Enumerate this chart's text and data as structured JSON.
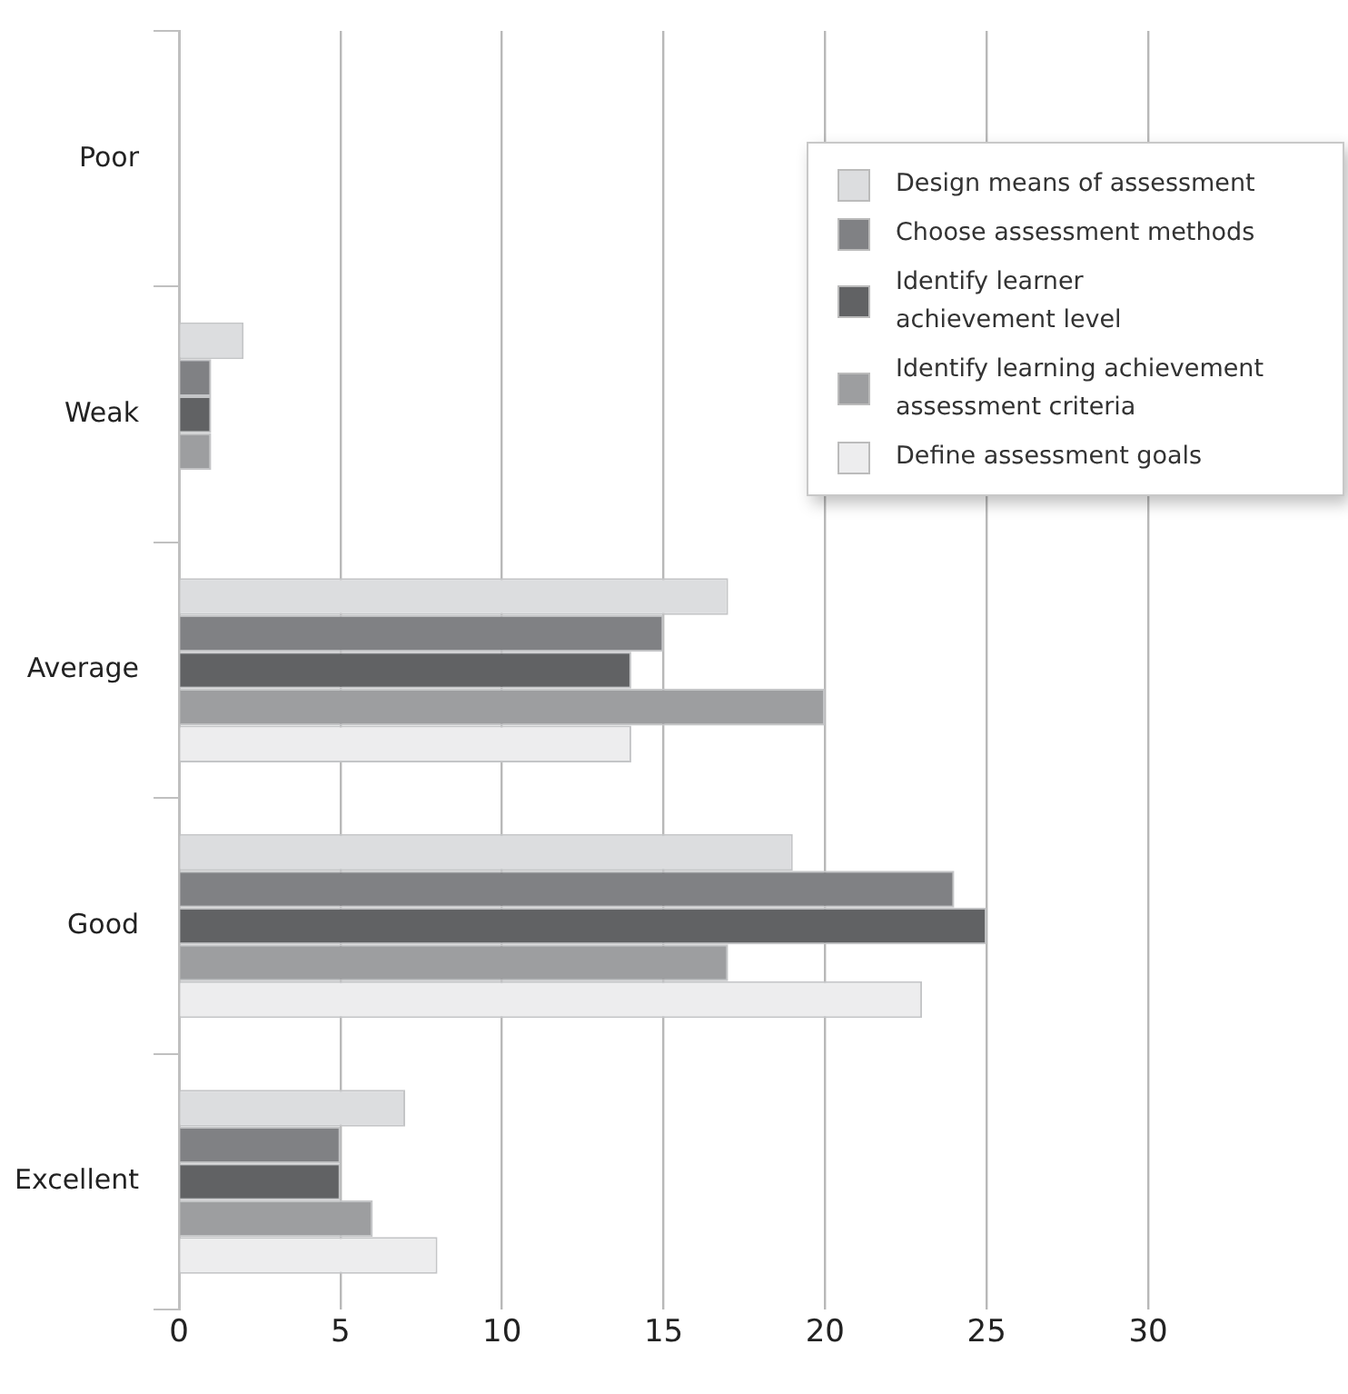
{
  "chart_data": {
    "type": "bar",
    "orientation": "horizontal",
    "categories": [
      "Poor",
      "Weak",
      "Average",
      "Good",
      "Excellent"
    ],
    "series": [
      {
        "name": "Design means of assessment",
        "color": "#dcdddf",
        "values": [
          0,
          2,
          17,
          19,
          7
        ]
      },
      {
        "name": "Choose assessment methods",
        "color": "#808184",
        "values": [
          0,
          1,
          15,
          24,
          5
        ]
      },
      {
        "name": "Identify learner\nachievement level",
        "color": "#616264",
        "values": [
          0,
          1,
          14,
          25,
          5
        ]
      },
      {
        "name": "Identify learning achievement\nassessment criteria",
        "color": "#9d9ea0",
        "values": [
          0,
          1,
          20,
          17,
          6
        ]
      },
      {
        "name": "Define assessment goals",
        "color": "#ededee",
        "values": [
          0,
          0,
          14,
          23,
          8
        ]
      }
    ],
    "xlim": [
      0,
      30
    ],
    "xticks": [
      0,
      5,
      10,
      15,
      20,
      25,
      30
    ],
    "grid": "x",
    "legend": "top right"
  }
}
